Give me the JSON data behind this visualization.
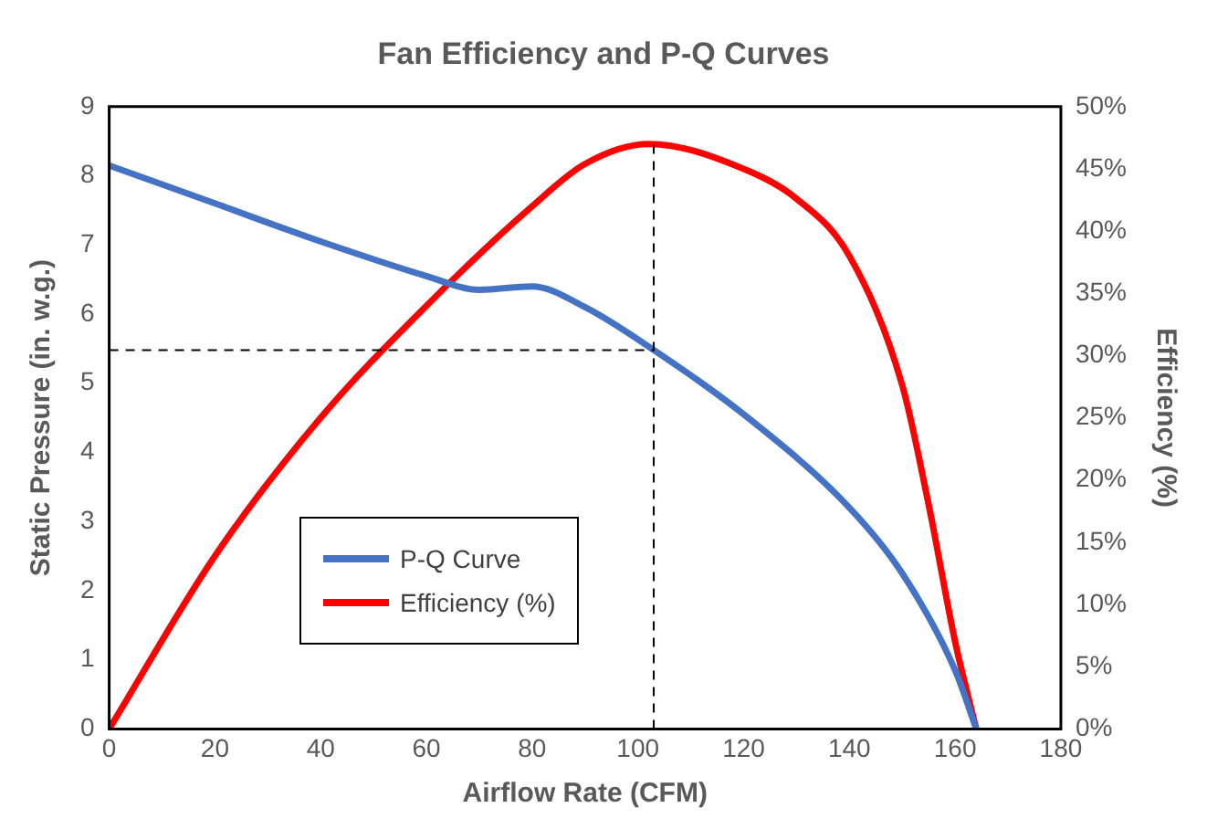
{
  "chart_data": {
    "type": "line",
    "title": "Fan Efficiency and P-Q Curves",
    "xlabel": "Airflow Rate (CFM)",
    "ylabel": "Static Pressure (in. w.g.)",
    "y2label": "Efficiency (%)",
    "xlim": [
      0,
      180
    ],
    "xticks": [
      0,
      20,
      40,
      60,
      80,
      100,
      120,
      140,
      160,
      180
    ],
    "ylim": [
      0,
      9
    ],
    "yticks": [
      0,
      1,
      2,
      3,
      4,
      5,
      6,
      7,
      8,
      9
    ],
    "y2lim": [
      0,
      50
    ],
    "y2ticks": [
      {
        "value": 0,
        "label": "0%"
      },
      {
        "value": 5,
        "label": "5%"
      },
      {
        "value": 10,
        "label": "10%"
      },
      {
        "value": 15,
        "label": "15%"
      },
      {
        "value": 20,
        "label": "20%"
      },
      {
        "value": 25,
        "label": "25%"
      },
      {
        "value": 30,
        "label": "30%"
      },
      {
        "value": 35,
        "label": "35%"
      },
      {
        "value": 40,
        "label": "40%"
      },
      {
        "value": 45,
        "label": "45%"
      },
      {
        "value": 50,
        "label": "50%"
      }
    ],
    "series": [
      {
        "name": "P-Q Curve",
        "color": "#4472c4",
        "x": [
          0,
          20,
          40,
          60,
          70,
          80,
          90,
          103,
          120,
          140,
          150,
          160,
          164
        ],
        "values": [
          8.15,
          7.6,
          7.05,
          6.55,
          6.35,
          6.4,
          6.1,
          5.48,
          4.55,
          3.2,
          2.25,
          0.85,
          0
        ]
      },
      {
        "name": "Efficiency (%)",
        "color": "#ff0000",
        "axis": "y2",
        "x": [
          0,
          20,
          40,
          60,
          80,
          90,
          102,
          120,
          130,
          140,
          150,
          155,
          160,
          164
        ],
        "values": [
          0,
          13.9,
          25,
          34,
          42,
          45.4,
          47,
          45,
          42.6,
          38,
          27.6,
          18,
          7,
          0
        ]
      }
    ],
    "ref_lines": [
      {
        "axis": "x",
        "value": 103,
        "color": "#000000",
        "line_style": "dashed"
      },
      {
        "axis": "y",
        "value": 5.48,
        "color": "#000000",
        "line_style": "dashed"
      }
    ],
    "grid": false,
    "legend": "bottom left",
    "marker": "none",
    "line_style": "solid"
  }
}
